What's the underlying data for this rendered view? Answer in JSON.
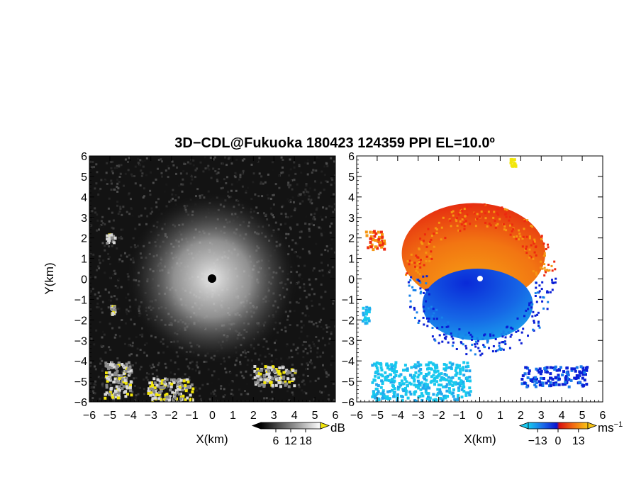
{
  "title": "3D−CDL@Fukuoka 180423 124359 PPI EL=10.0º",
  "colors": {
    "background": "#ffffff",
    "left_bg": "#131313",
    "right_bg": "#ffffff",
    "highlight": "#f2e60a",
    "approaching_dark": "#0a1fd6",
    "approaching_light": "#18c8ee",
    "receding_red": "#ee2a10",
    "receding_orange": "#f59612"
  },
  "chart_data": [
    {
      "type": "heatmap",
      "variable": "reflectivity (SNR)",
      "xlabel": "X(km)",
      "ylabel": "Y(km)",
      "xlim": [
        -6,
        6
      ],
      "ylim": [
        -6,
        6
      ],
      "xticks": [
        "−6",
        "−5",
        "−4",
        "−3",
        "−2",
        "−1",
        "0",
        "1",
        "2",
        "3",
        "4",
        "5",
        "6"
      ],
      "yticks": [
        "6",
        "5",
        "4",
        "3",
        "2",
        "1",
        "0",
        "−1",
        "−2",
        "−3",
        "−4",
        "−5",
        "−6"
      ],
      "radar_center": [
        0,
        0
      ],
      "colorbar": {
        "unit": "dB",
        "ticks": [
          "6",
          "12",
          "18"
        ],
        "colormap": "grayscale",
        "range": [
          0,
          24
        ]
      },
      "features": [
        {
          "kind": "bright_disk",
          "center": [
            0,
            0
          ],
          "radius_km": 3.6
        },
        {
          "kind": "echo_patch",
          "x": [
            -5.2,
            -4.8
          ],
          "y": [
            1.8,
            2.3
          ]
        },
        {
          "kind": "echo_patch",
          "x": [
            -5.3,
            -4.0
          ],
          "y": [
            -5.8,
            -4.0
          ]
        },
        {
          "kind": "echo_patch",
          "x": [
            -3.2,
            -1.0
          ],
          "y": [
            -6.0,
            -4.8
          ]
        },
        {
          "kind": "echo_patch",
          "x": [
            2.0,
            4.0
          ],
          "y": [
            -5.2,
            -4.2
          ]
        },
        {
          "kind": "echo_patch",
          "x": [
            -5.0,
            -4.8
          ],
          "y": [
            -1.7,
            -1.2
          ]
        }
      ]
    },
    {
      "type": "heatmap",
      "variable": "Doppler velocity",
      "xlabel": "X(km)",
      "ylabel": "",
      "xlim": [
        -6,
        6
      ],
      "ylim": [
        -6,
        6
      ],
      "xticks": [
        "−6",
        "−5",
        "−4",
        "−3",
        "−2",
        "−1",
        "0",
        "1",
        "2",
        "3",
        "4",
        "5",
        "6"
      ],
      "yticks": [
        "6",
        "5",
        "4",
        "3",
        "2",
        "1",
        "0",
        "−1",
        "−2",
        "−3",
        "−4",
        "−5",
        "−6"
      ],
      "radar_center": [
        0,
        0
      ],
      "colorbar": {
        "unit": "ms",
        "unit_exp": "−1",
        "ticks": [
          "−13",
          "0",
          "13"
        ],
        "colormap": "diverging",
        "range": [
          -19,
          19
        ]
      },
      "features": [
        {
          "kind": "receding_region",
          "sign": "positive",
          "x": [
            -3.8,
            3.2
          ],
          "y": [
            -1.2,
            3.7
          ]
        },
        {
          "kind": "approaching_region",
          "sign": "negative",
          "x": [
            -2.8,
            2.6
          ],
          "y": [
            -3.0,
            0.5
          ]
        },
        {
          "kind": "echo_patch",
          "sign": "positive",
          "x": [
            -5.6,
            -4.7
          ],
          "y": [
            1.5,
            2.4
          ]
        },
        {
          "kind": "echo_patch",
          "sign": "negative",
          "x": [
            -5.8,
            -5.4
          ],
          "y": [
            -2.1,
            -1.3
          ]
        },
        {
          "kind": "echo_patch",
          "sign": "negative",
          "x": [
            -5.3,
            -0.5
          ],
          "y": [
            -5.9,
            -4.0
          ]
        },
        {
          "kind": "echo_patch",
          "sign": "negative",
          "x": [
            2.0,
            5.2
          ],
          "y": [
            -5.2,
            -4.2
          ]
        },
        {
          "kind": "echo_patch",
          "sign": "positive",
          "x": [
            1.4,
            1.7
          ],
          "y": [
            5.5,
            5.9
          ]
        }
      ]
    }
  ]
}
